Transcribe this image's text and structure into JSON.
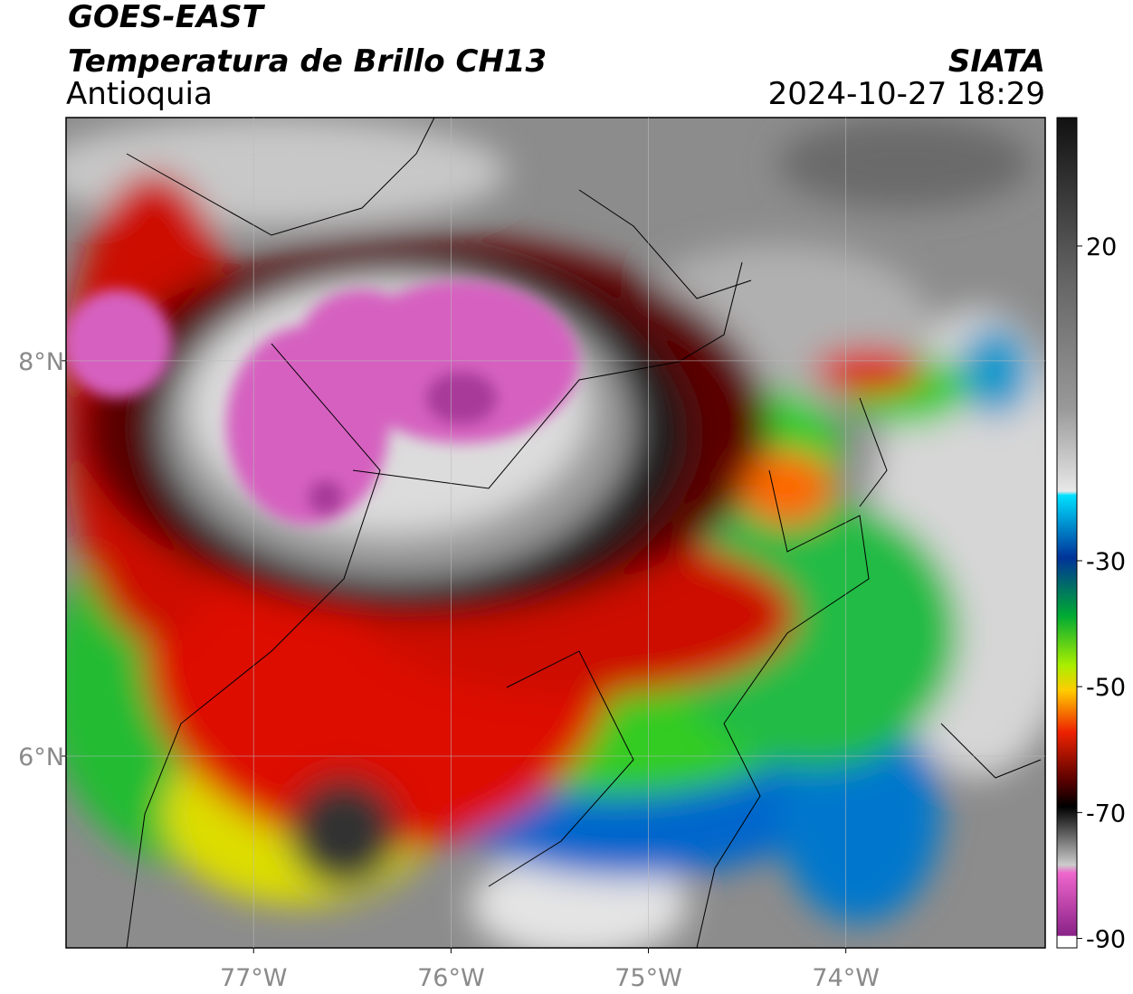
{
  "header": {
    "satellite": "GOES-EAST",
    "product": "Temperatura de Brillo CH13",
    "region": "Antioquia",
    "source": "SIATA",
    "datetime": "2024-10-27 18:29"
  },
  "map": {
    "xlim": [
      -77.95,
      -72.99
    ],
    "ylim": [
      5.03,
      9.23
    ],
    "xticks": [
      {
        "value": -77,
        "label": "77°W"
      },
      {
        "value": -76,
        "label": "76°W"
      },
      {
        "value": -75,
        "label": "75°W"
      },
      {
        "value": -74,
        "label": "74°W"
      }
    ],
    "yticks": [
      {
        "value": 8,
        "label": "8°N"
      },
      {
        "value": 6,
        "label": "6°N"
      }
    ],
    "grid": true
  },
  "colorbar": {
    "lim": [
      40.4,
      -91.5
    ],
    "ticks": [
      20,
      -30,
      -50,
      -70,
      -90
    ]
  }
}
